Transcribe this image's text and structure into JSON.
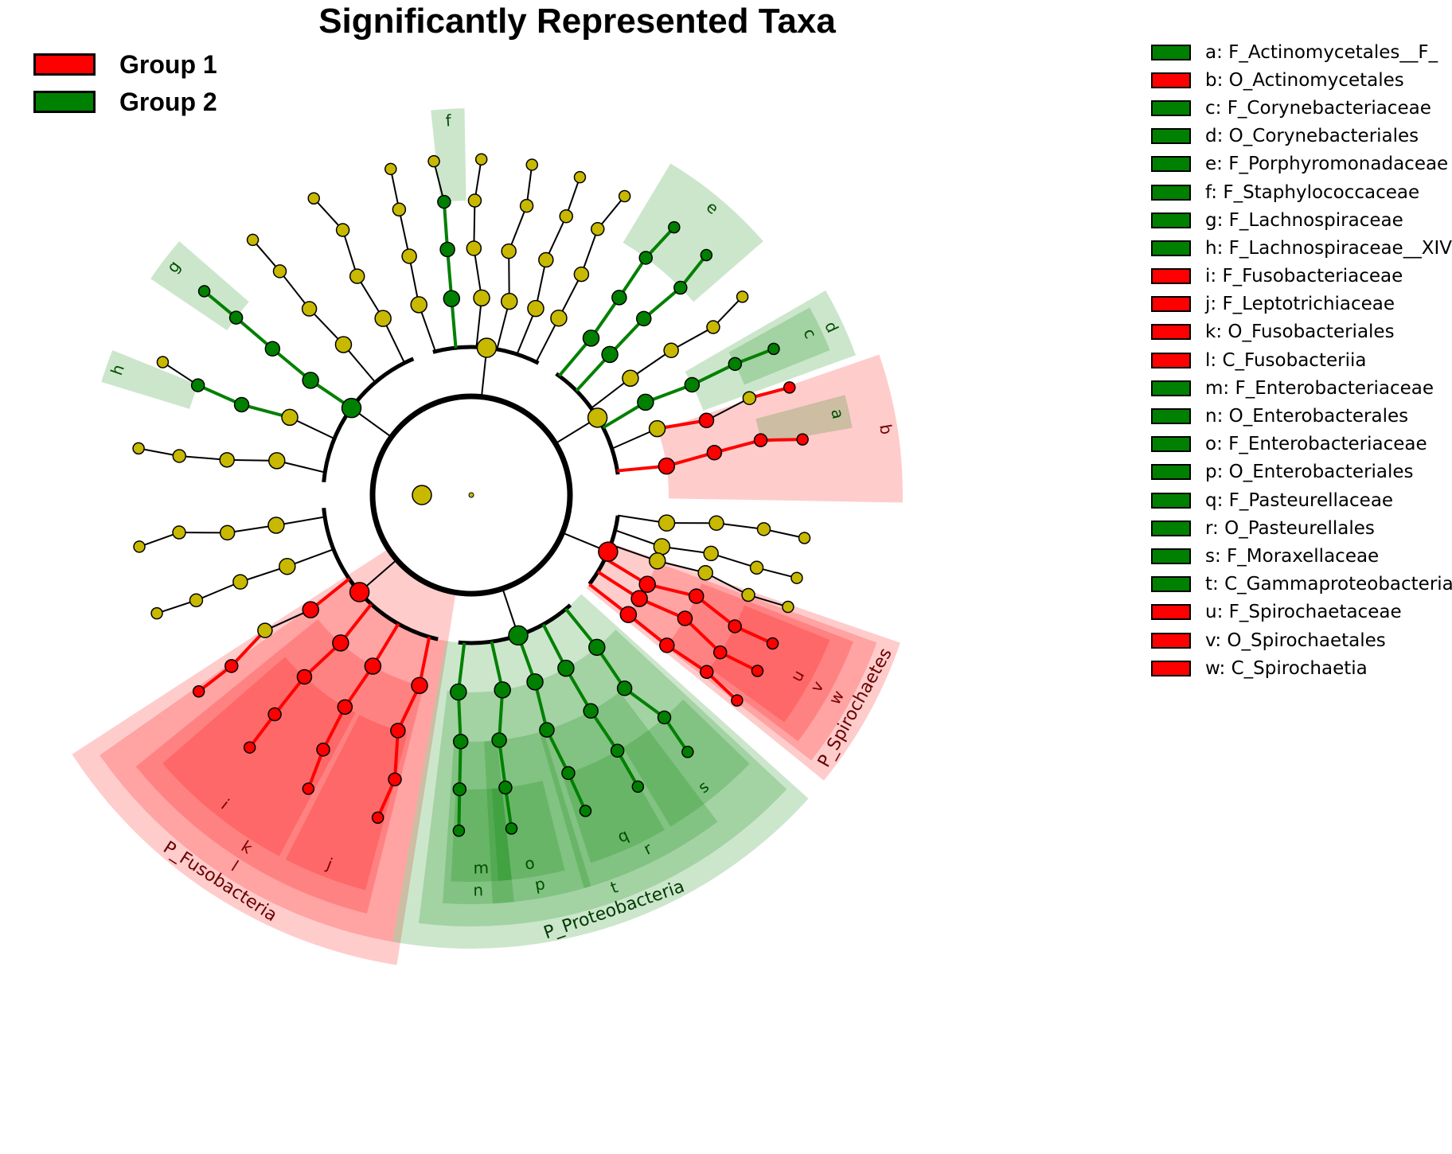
{
  "title": "Significantly Represented Taxa",
  "groups": [
    {
      "name": "Group 1",
      "color": "#ff0000"
    },
    {
      "name": "Group 2",
      "color": "#008000"
    }
  ],
  "colors": {
    "node_default": "#c8b900",
    "group1": "#ff0000",
    "group2": "#008000"
  },
  "clades": [
    {
      "letter": "a",
      "name": "F_Actinomycetales__F_",
      "group": 2
    },
    {
      "letter": "b",
      "name": "O_Actinomycetales",
      "group": 1
    },
    {
      "letter": "c",
      "name": "F_Corynebacteriaceae",
      "group": 2
    },
    {
      "letter": "d",
      "name": "O_Corynebacteriales",
      "group": 2
    },
    {
      "letter": "e",
      "name": "F_Porphyromonadaceae",
      "group": 2
    },
    {
      "letter": "f",
      "name": "F_Staphylococcaceae",
      "group": 2
    },
    {
      "letter": "g",
      "name": "F_Lachnospiraceae",
      "group": 2
    },
    {
      "letter": "h",
      "name": "F_Lachnospiraceae__XIV",
      "group": 2
    },
    {
      "letter": "i",
      "name": "F_Fusobacteriaceae",
      "group": 1
    },
    {
      "letter": "j",
      "name": "F_Leptotrichiaceae",
      "group": 1
    },
    {
      "letter": "k",
      "name": "O_Fusobacteriales",
      "group": 1
    },
    {
      "letter": "l",
      "name": "C_Fusobacteriia",
      "group": 1
    },
    {
      "letter": "m",
      "name": "F_Enterobacteriaceae",
      "group": 2
    },
    {
      "letter": "n",
      "name": "O_Enterobacterales",
      "group": 2
    },
    {
      "letter": "o",
      "name": "F_Enterobacteriaceae",
      "group": 2
    },
    {
      "letter": "p",
      "name": "O_Enterobacteriales",
      "group": 2
    },
    {
      "letter": "q",
      "name": "F_Pasteurellaceae",
      "group": 2
    },
    {
      "letter": "r",
      "name": "O_Pasteurellales",
      "group": 2
    },
    {
      "letter": "s",
      "name": "F_Moraxellaceae",
      "group": 2
    },
    {
      "letter": "t",
      "name": "C_Gammaproteobacteria",
      "group": 2
    },
    {
      "letter": "u",
      "name": "F_Spirochaetaceae",
      "group": 1
    },
    {
      "letter": "v",
      "name": "O_Spirochaetales",
      "group": 1
    },
    {
      "letter": "w",
      "name": "C_Spirochaetia",
      "group": 1
    }
  ],
  "phyla": [
    {
      "label": "P_Fusobacteria",
      "group": 1
    },
    {
      "label": "P_Proteobacteria",
      "group": 2
    },
    {
      "label": "P_Spirochaetes",
      "group": 1
    }
  ]
}
